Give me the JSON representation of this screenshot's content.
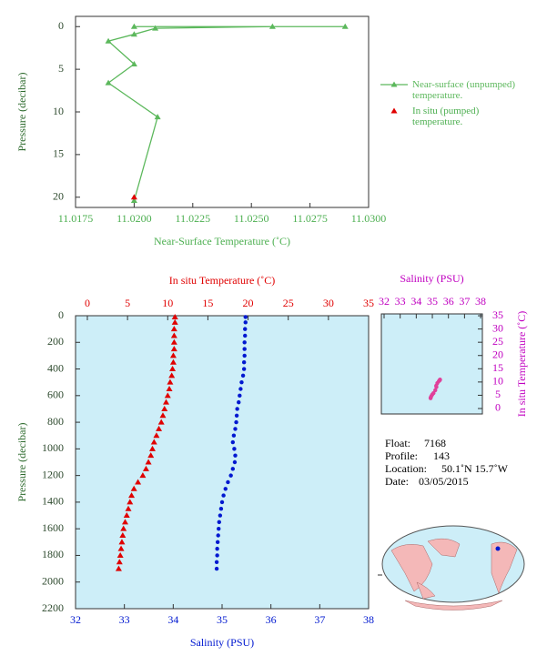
{
  "chart_data": [
    {
      "type": "line",
      "x_label": "Near-Surface Temperature (˚C)",
      "y_label": "Pressure (decibar)",
      "xlim": [
        11.0175,
        11.03
      ],
      "xticks": [
        {
          "value": 11.0175,
          "label": "11.0175"
        },
        {
          "value": 11.02,
          "label": "11.0200"
        },
        {
          "value": 11.0225,
          "label": "11.0225"
        },
        {
          "value": 11.025,
          "label": "11.0250"
        },
        {
          "value": 11.0275,
          "label": "11.0275"
        },
        {
          "value": 11.03,
          "label": "11.0300"
        }
      ],
      "ylim": [
        -1.2,
        21.2
      ],
      "y_inverted": true,
      "yticks": [
        0,
        5,
        10,
        15,
        20
      ],
      "legend": "right",
      "series": [
        {
          "name": "Near-surface (unpumped) temperature.",
          "color": "#5cb85c",
          "marker": "triangle",
          "line": true,
          "x": [
            11.02,
            11.029,
            11.0259,
            11.0209,
            11.02,
            11.0189,
            11.02,
            11.0189,
            11.021,
            11.02
          ],
          "values": [
            0,
            0,
            0,
            0.2,
            0.9,
            1.7,
            4.4,
            6.6,
            10.6,
            20.4
          ]
        },
        {
          "name": "In situ (pumped) temperature.",
          "color": "#e00000",
          "marker": "triangle",
          "line": false,
          "x": [
            11.02
          ],
          "values": [
            20
          ]
        }
      ]
    },
    {
      "type": "scatter",
      "x_label": "Salinity (PSU)",
      "x2_label": "In situ Temperature (˚C)",
      "y_label": "Pressure (decibar)",
      "xlim": [
        32,
        38
      ],
      "xticks": [
        32,
        33,
        34,
        35,
        36,
        37,
        38
      ],
      "x2lim": [
        -1.47,
        35
      ],
      "x2ticks": [
        0,
        5,
        10,
        15,
        20,
        25,
        30,
        35
      ],
      "ylim": [
        0,
        2200
      ],
      "y_inverted": true,
      "yticks": [
        0,
        200,
        400,
        600,
        800,
        1000,
        1200,
        1400,
        1600,
        1800,
        2000,
        2200
      ],
      "background": "#cdeef8",
      "series": [
        {
          "color": "#e00000",
          "marker": "triangle",
          "axis": "x2",
          "x": [
            10.9,
            10.9,
            10.8,
            10.8,
            10.8,
            10.8,
            10.7,
            10.7,
            10.6,
            10.5,
            10.3,
            10.2,
            10.0,
            9.8,
            9.6,
            9.4,
            9.2,
            8.9,
            8.6,
            8.3,
            8.1,
            7.9,
            7.6,
            7.3,
            6.9,
            6.3,
            5.8,
            5.5,
            5.3,
            5.1,
            4.9,
            4.7,
            4.5,
            4.4,
            4.3,
            4.2,
            4.1,
            4.0,
            3.9
          ],
          "values": [
            10,
            50,
            100,
            150,
            200,
            250,
            300,
            350,
            400,
            450,
            500,
            550,
            600,
            650,
            700,
            750,
            800,
            850,
            900,
            950,
            1000,
            1050,
            1100,
            1150,
            1200,
            1250,
            1300,
            1350,
            1400,
            1450,
            1500,
            1550,
            1600,
            1650,
            1700,
            1750,
            1800,
            1850,
            1900
          ]
        },
        {
          "color": "#0018d0",
          "marker": "circle",
          "axis": "x",
          "x": [
            35.48,
            35.48,
            35.47,
            35.47,
            35.46,
            35.46,
            35.46,
            35.45,
            35.45,
            35.43,
            35.4,
            35.38,
            35.36,
            35.34,
            35.31,
            35.3,
            35.29,
            35.27,
            35.24,
            35.22,
            35.25,
            35.27,
            35.26,
            35.22,
            35.18,
            35.12,
            35.07,
            35.03,
            35.0,
            34.98,
            34.96,
            34.94,
            34.93,
            34.92,
            34.91,
            34.9,
            34.9,
            34.89,
            34.89
          ],
          "values": [
            10,
            50,
            100,
            150,
            200,
            250,
            300,
            350,
            400,
            450,
            500,
            550,
            600,
            650,
            700,
            750,
            800,
            850,
            900,
            950,
            1000,
            1050,
            1100,
            1150,
            1200,
            1250,
            1300,
            1350,
            1400,
            1450,
            1500,
            1550,
            1600,
            1650,
            1700,
            1750,
            1800,
            1850,
            1900
          ]
        }
      ]
    },
    {
      "type": "scatter",
      "x_label": "Salinity (PSU)",
      "y_label": "In situ Temperature (˚C)",
      "xlim": [
        31.83,
        38.11
      ],
      "xticks": [
        32,
        33,
        34,
        35,
        36,
        37,
        38
      ],
      "ylim": [
        -2.06,
        35.7
      ],
      "y_inverted": false,
      "yticks": [
        0,
        5,
        10,
        15,
        20,
        25,
        30,
        35
      ],
      "background": "#cdeef8",
      "series": [
        {
          "color": "#e0409a",
          "marker": "circle",
          "x": [
            35.48,
            35.46,
            35.45,
            35.4,
            35.31,
            35.24,
            35.25,
            35.18,
            35.07,
            35.0,
            34.94,
            34.9,
            34.89
          ],
          "values": [
            10.9,
            10.8,
            10.6,
            10.3,
            9.6,
            8.6,
            8.1,
            6.9,
            5.8,
            5.3,
            4.7,
            4.2,
            3.9
          ]
        }
      ]
    }
  ],
  "float_info": [
    {
      "label": "Float:",
      "value": "7168"
    },
    {
      "label": "Profile:",
      "value": "143"
    },
    {
      "label": "Location:",
      "value": "50.1˚N  15.7˚W"
    },
    {
      "label": "Date:",
      "value": "03/05/2015"
    }
  ]
}
